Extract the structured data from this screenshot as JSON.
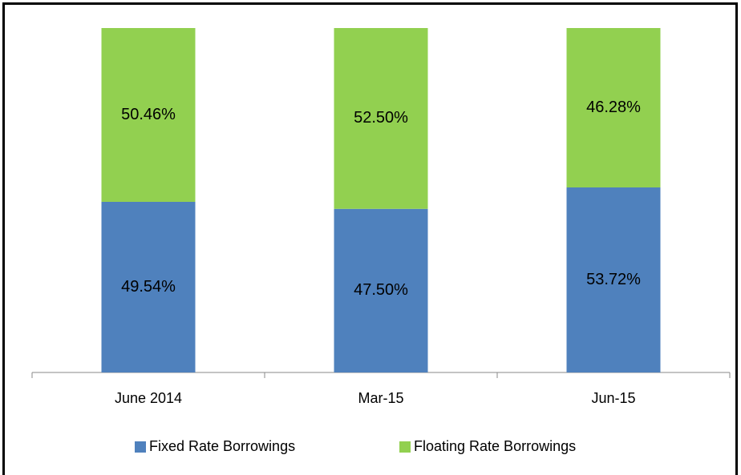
{
  "chart_data": {
    "type": "bar",
    "stacked": true,
    "categories": [
      "June 2014",
      "Mar-15",
      "Jun-15"
    ],
    "series": [
      {
        "name": "Fixed Rate Borrowings",
        "color": "#4f81bd",
        "values": [
          49.54,
          47.5,
          53.72
        ],
        "value_labels": [
          "49.54%",
          "47.50%",
          "53.72%"
        ]
      },
      {
        "name": "Floating Rate Borrowings",
        "color": "#92d050",
        "values": [
          50.46,
          52.5,
          46.28
        ],
        "value_labels": [
          "50.46%",
          "52.50%",
          "46.28%"
        ]
      }
    ],
    "ylim": [
      0,
      100
    ],
    "legend": "bottom"
  }
}
